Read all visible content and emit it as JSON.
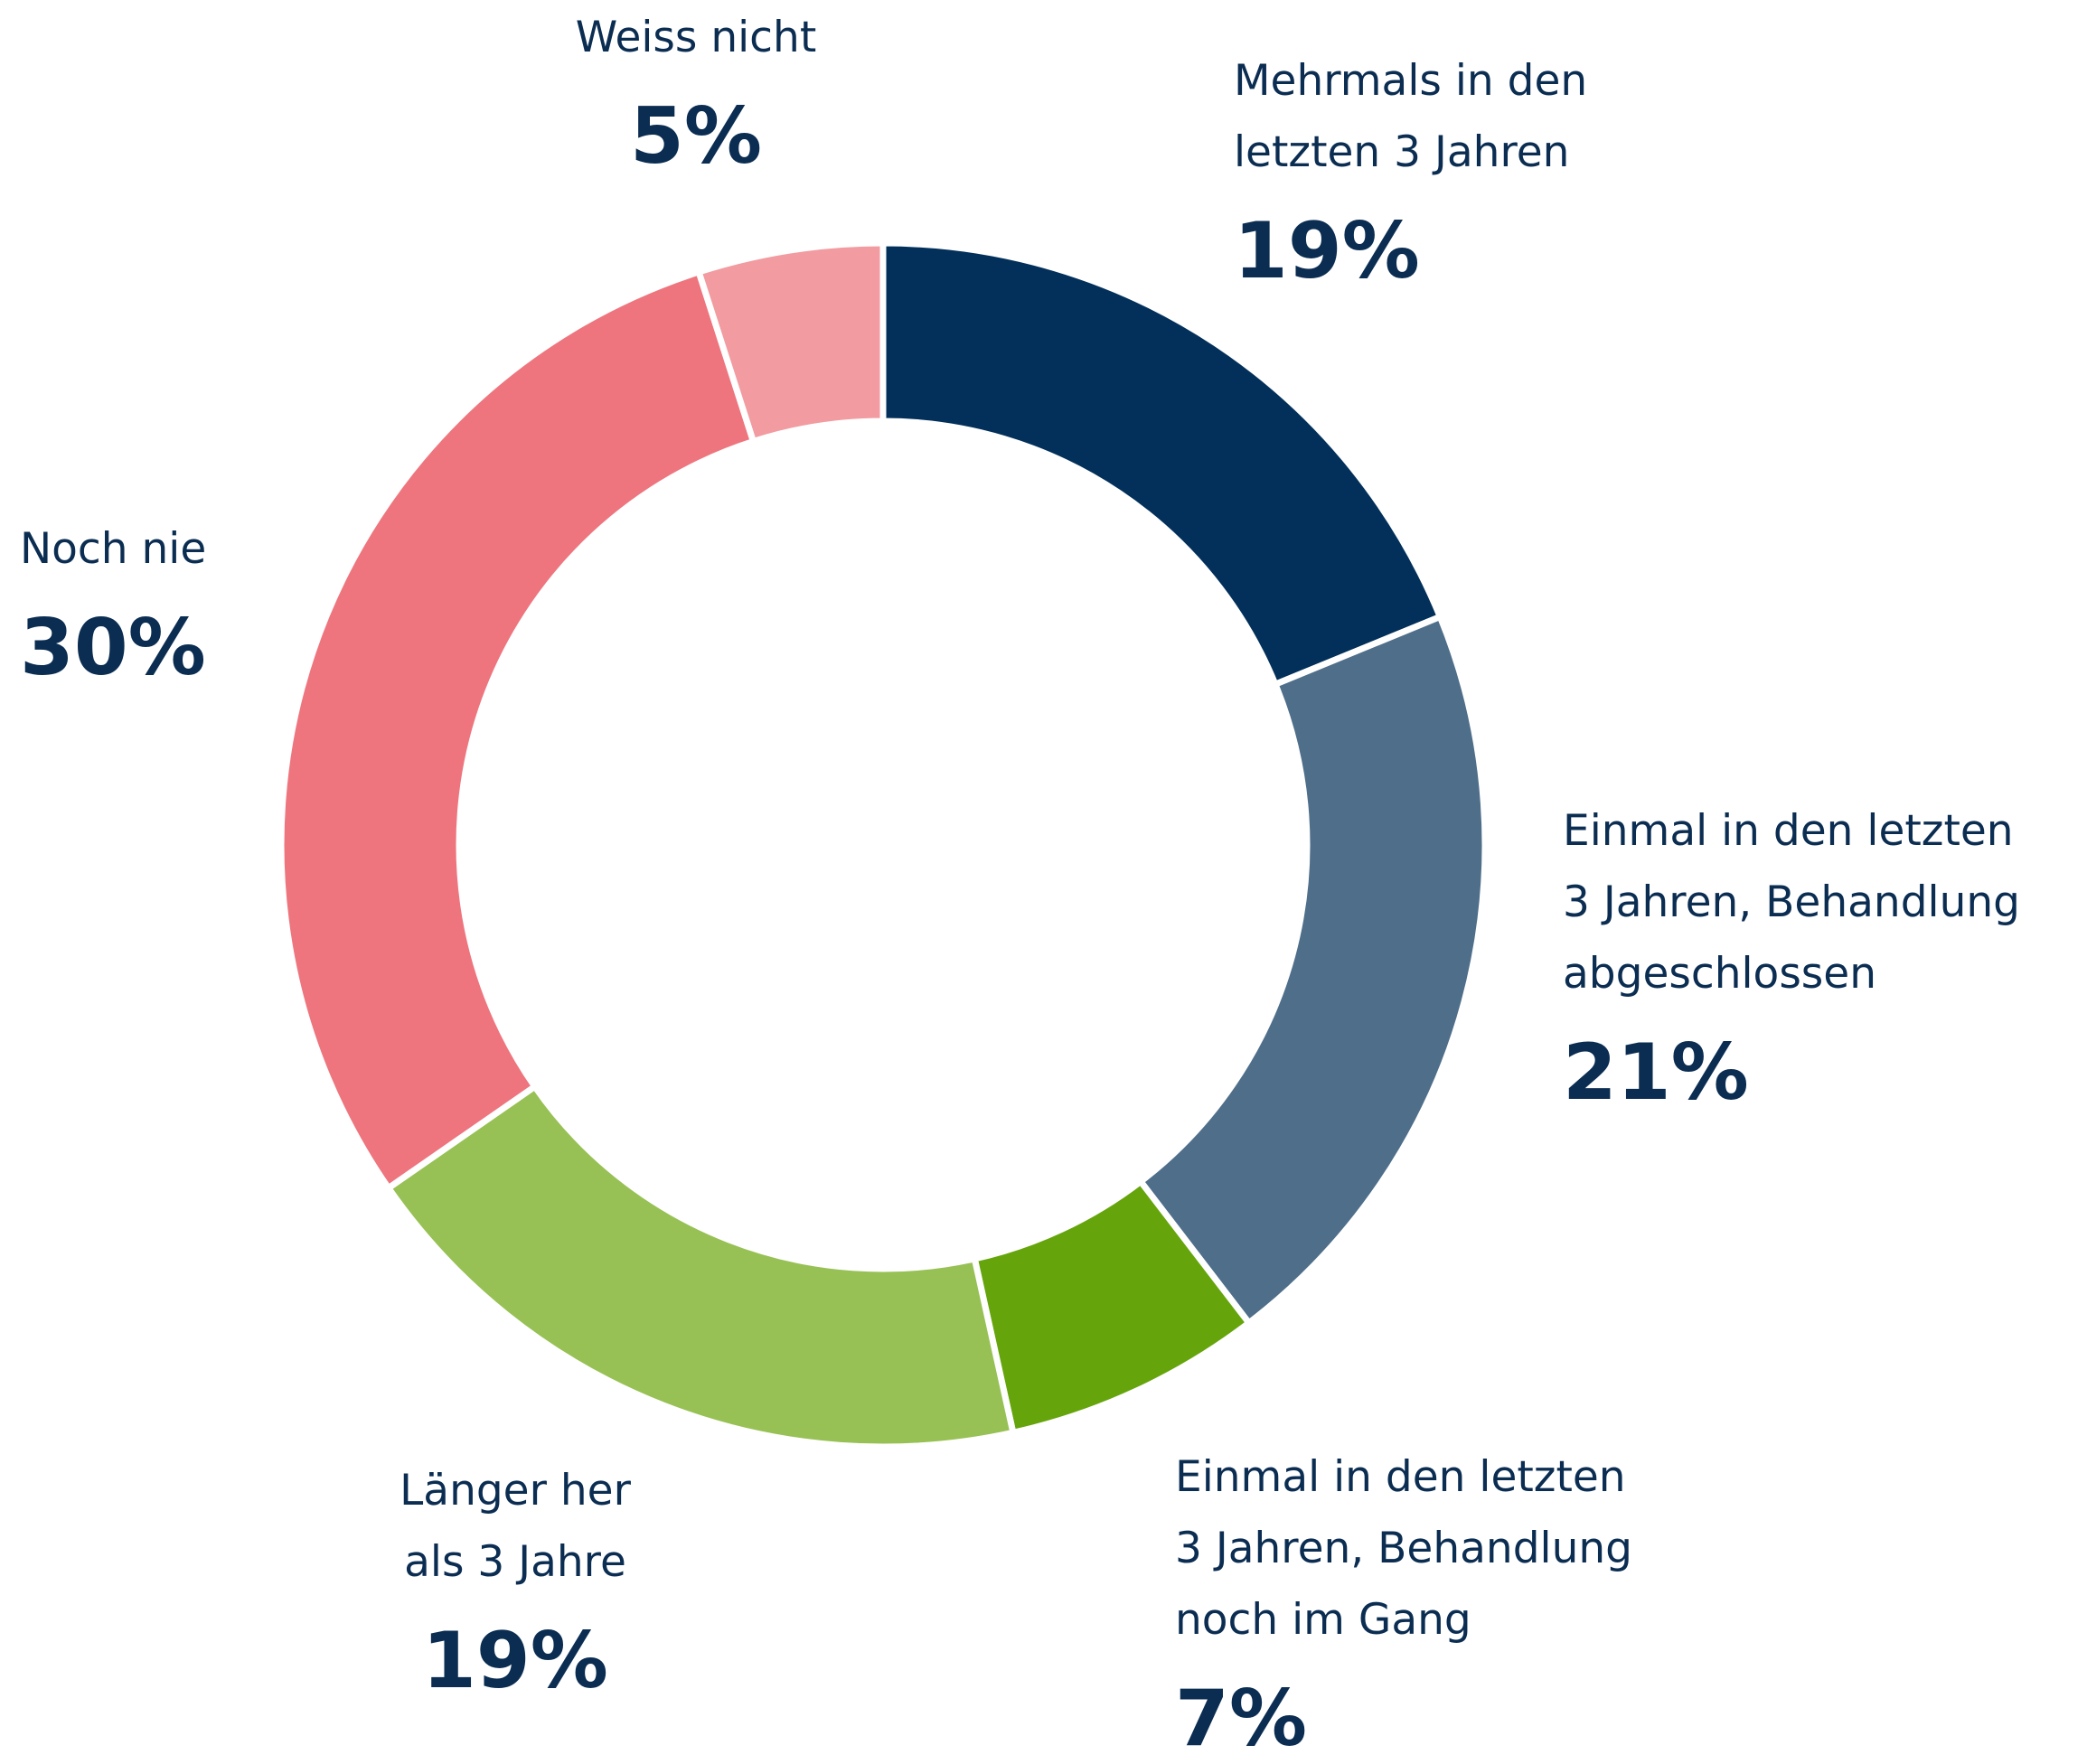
{
  "chart_data": {
    "type": "donut",
    "categories": [
      "Mehrmals in den\nletzten 3 Jahren",
      "Einmal in den letzten\n3 Jahren, Behandlung\nabgeschlossen",
      "Einmal in den letzten\n3 Jahren, Behandlung\nnoch im Gang",
      "Länger her\nals 3 Jahre",
      "Noch nie",
      "Weiss nicht"
    ],
    "values": [
      19,
      21,
      7,
      19,
      30,
      5
    ],
    "value_labels": [
      "19%",
      "21%",
      "7%",
      "19%",
      "30%",
      "5%"
    ],
    "colors": [
      "#02305a",
      "#4e6e8a",
      "#65a50b",
      "#97c154",
      "#ee757e",
      "#f29ba0"
    ]
  }
}
